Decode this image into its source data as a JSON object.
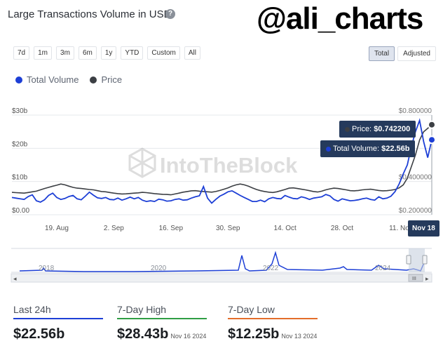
{
  "header": {
    "title": "Large Transactions Volume in USD",
    "help": "?",
    "overlay_handle": "@ali_charts"
  },
  "range_buttons": [
    "7d",
    "1m",
    "3m",
    "6m",
    "1y",
    "YTD",
    "Custom",
    "All"
  ],
  "mode_buttons": {
    "total": "Total",
    "adjusted": "Adjusted",
    "selected": "Total"
  },
  "legend": {
    "volume": "Total Volume",
    "price": "Price",
    "volume_color": "#1d3fd6",
    "price_color": "#3c3f44"
  },
  "watermark": "IntoTheBlock",
  "tooltip": {
    "price_label": "Price:",
    "price_value": "$0.742200",
    "volume_label": "Total Volume:",
    "volume_value": "$22.56b",
    "date": "Nov 18"
  },
  "navigator": {
    "years": [
      "2018",
      "2020",
      "2022",
      "2024"
    ],
    "scroll_handle": "III"
  },
  "stats": {
    "last_24h": {
      "label": "Last 24h",
      "value": "$22.56b",
      "color": "#1d3fd6"
    },
    "high_7d": {
      "label": "7-Day High",
      "value": "$28.43b",
      "date": "Nov 16 2024",
      "color": "#2f9e44"
    },
    "low_7d": {
      "label": "7-Day Low",
      "value": "$12.25b",
      "date": "Nov 13 2024",
      "color": "#e36d2a"
    }
  },
  "chart_data": {
    "type": "line",
    "title": "Large Transactions Volume in USD",
    "x_tick_labels": [
      "19. Aug",
      "2. Sep",
      "16. Sep",
      "30. Sep",
      "14. Oct",
      "28. Oct",
      "11. No"
    ],
    "y_left_ticks": [
      "$0.00",
      "$10b",
      "$20b",
      "$30b"
    ],
    "y_right_ticks": [
      "$0.200000",
      "$0.400000",
      "$0.800000"
    ],
    "ylim_volume": [
      0,
      30
    ],
    "ylim_price": [
      0.2,
      0.8
    ],
    "x_start": "2024-08-08",
    "x_end": "2024-11-18",
    "series": [
      {
        "name": "Total Volume",
        "unit": "USD billions",
        "color": "#1d3fd6",
        "values": [
          5.2,
          5.0,
          4.8,
          4.6,
          5.5,
          6.0,
          4.2,
          3.8,
          4.5,
          5.8,
          6.5,
          5.2,
          4.6,
          4.9,
          5.5,
          5.8,
          4.8,
          4.5,
          5.6,
          6.8,
          5.9,
          5.1,
          4.9,
          5.2,
          4.6,
          4.5,
          5.0,
          4.4,
          4.8,
          5.3,
          4.8,
          5.2,
          4.4,
          4.0,
          4.2,
          4.0,
          4.7,
          4.5,
          4.1,
          4.2,
          4.6,
          4.8,
          4.4,
          4.5,
          5.0,
          5.4,
          5.7,
          8.5,
          5.0,
          3.5,
          4.6,
          5.6,
          6.2,
          6.9,
          7.2,
          6.5,
          5.8,
          5.2,
          4.6,
          4.0,
          4.0,
          4.4,
          3.9,
          4.8,
          5.2,
          4.9,
          4.8,
          5.8,
          5.3,
          4.9,
          4.8,
          5.4,
          5.1,
          4.6,
          5.0,
          5.2,
          5.4,
          6.1,
          5.7,
          4.6,
          4.1,
          4.8,
          4.5,
          4.2,
          4.3,
          4.5,
          4.8,
          5.0,
          4.6,
          4.4,
          5.4,
          4.8,
          5.0,
          5.6,
          7.0,
          9.3,
          12.3,
          15.0,
          20.5,
          25.0,
          28.4,
          22.0,
          17.2,
          22.56
        ]
      },
      {
        "name": "Price",
        "unit": "USD",
        "color": "#3c3f44",
        "values": [
          0.335,
          0.333,
          0.332,
          0.33,
          0.334,
          0.338,
          0.342,
          0.35,
          0.358,
          0.365,
          0.372,
          0.378,
          0.385,
          0.38,
          0.372,
          0.365,
          0.36,
          0.358,
          0.355,
          0.352,
          0.35,
          0.345,
          0.34,
          0.338,
          0.334,
          0.33,
          0.327,
          0.325,
          0.326,
          0.328,
          0.33,
          0.332,
          0.335,
          0.333,
          0.33,
          0.327,
          0.325,
          0.323,
          0.322,
          0.32,
          0.325,
          0.33,
          0.336,
          0.34,
          0.344,
          0.345,
          0.342,
          0.34,
          0.338,
          0.336,
          0.34,
          0.346,
          0.354,
          0.362,
          0.372,
          0.38,
          0.385,
          0.38,
          0.372,
          0.362,
          0.352,
          0.345,
          0.34,
          0.336,
          0.334,
          0.338,
          0.345,
          0.352,
          0.36,
          0.362,
          0.358,
          0.354,
          0.35,
          0.345,
          0.34,
          0.337,
          0.342,
          0.35,
          0.356,
          0.36,
          0.358,
          0.354,
          0.35,
          0.345,
          0.344,
          0.346,
          0.35,
          0.352,
          0.354,
          0.35,
          0.346,
          0.344,
          0.345,
          0.348,
          0.352,
          0.362,
          0.38,
          0.42,
          0.49,
          0.56,
          0.65,
          0.7,
          0.72,
          0.742
        ]
      }
    ]
  }
}
